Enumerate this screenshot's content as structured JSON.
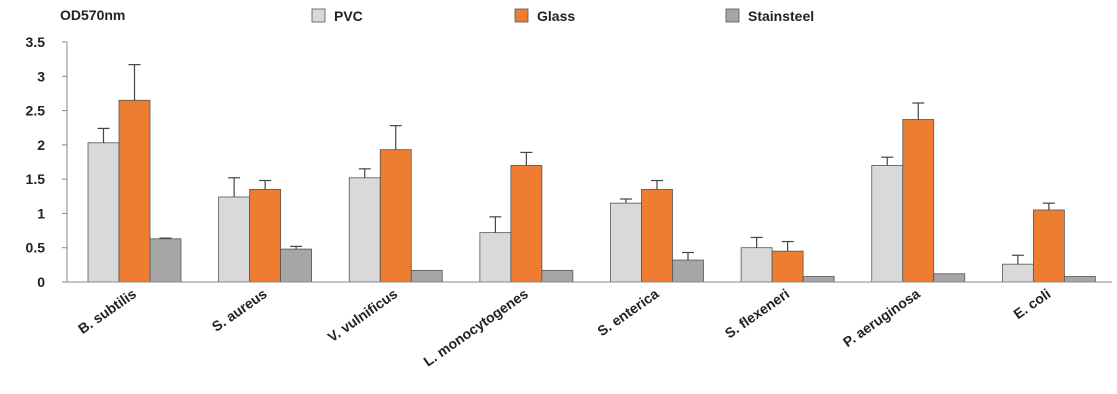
{
  "chart_data": {
    "type": "bar",
    "ylabel": "OD570nm",
    "ylim": [
      0,
      3.5
    ],
    "yticks": [
      0,
      0.5,
      1,
      1.5,
      2,
      2.5,
      3,
      3.5
    ],
    "ytick_labels": [
      "0",
      "0.5",
      "1",
      "1.5",
      "2",
      "2.5",
      "3",
      "3.5"
    ],
    "legend_position": "top",
    "grid": false,
    "categories": [
      "B. subtilis",
      "S. aureus",
      "V. vulnificus",
      "L. monocytogenes",
      "S. enterica",
      "S. flexeneri",
      "P. aeruginosa",
      "E. coli"
    ],
    "series": [
      {
        "name": "PVC",
        "color": "#d9d9d9",
        "values": [
          2.03,
          1.24,
          1.52,
          0.72,
          1.15,
          0.5,
          1.7,
          0.26
        ],
        "errors": [
          0.21,
          0.28,
          0.13,
          0.23,
          0.06,
          0.15,
          0.12,
          0.13
        ]
      },
      {
        "name": "Glass",
        "color": "#ed7d31",
        "values": [
          2.65,
          1.35,
          1.93,
          1.7,
          1.35,
          0.45,
          2.37,
          1.05
        ],
        "errors": [
          0.52,
          0.13,
          0.35,
          0.19,
          0.13,
          0.14,
          0.24,
          0.1
        ]
      },
      {
        "name": "Stainsteel",
        "color": "#a6a6a6",
        "values": [
          0.63,
          0.48,
          0.17,
          0.17,
          0.32,
          0.08,
          0.12,
          0.08
        ],
        "errors": [
          0.01,
          0.04,
          0.0,
          0.0,
          0.11,
          0.0,
          0.0,
          0.0
        ]
      }
    ]
  }
}
